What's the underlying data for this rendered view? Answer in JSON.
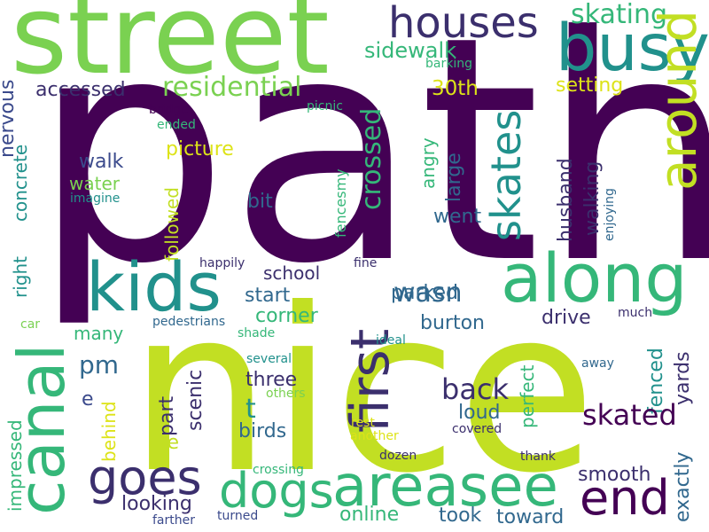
{
  "palette": {
    "dark_purple": "#440154",
    "indigo": "#3b4a8c",
    "blue": "#31688e",
    "teal": "#21918c",
    "green": "#35b779",
    "light_green": "#7ad151",
    "yellow_green": "#c2df23",
    "yellow": "#dde318"
  },
  "words": [
    {
      "text": "path",
      "color": "#440154"
    },
    {
      "text": "nice",
      "color": "#c2df23"
    },
    {
      "text": "street",
      "color": "#7ad151"
    },
    {
      "text": "houses",
      "color": "#3b2f6d"
    },
    {
      "text": "busy",
      "color": "#21918c"
    },
    {
      "text": "skating",
      "color": "#35b779"
    },
    {
      "text": "sidewalk",
      "color": "#35b779"
    },
    {
      "text": "barking",
      "color": "#35b779"
    },
    {
      "text": "skates",
      "color": "#21918c"
    },
    {
      "text": "around",
      "color": "#c2df23"
    },
    {
      "text": "residential",
      "color": "#7ad151"
    },
    {
      "text": "accessed",
      "color": "#3b2f6d"
    },
    {
      "text": "30th",
      "color": "#dde318"
    },
    {
      "text": "setting",
      "color": "#dde318"
    },
    {
      "text": "bridge",
      "color": "#440154"
    },
    {
      "text": "picnic",
      "color": "#35b779"
    },
    {
      "text": "ended",
      "color": "#35b779"
    },
    {
      "text": "nervous",
      "color": "#3b4a8c"
    },
    {
      "text": "concrete",
      "color": "#21918c"
    },
    {
      "text": "right",
      "color": "#21918c"
    },
    {
      "text": "walk",
      "color": "#3b4a8c"
    },
    {
      "text": "water",
      "color": "#7ad151"
    },
    {
      "text": "imagine",
      "color": "#21918c"
    },
    {
      "text": "picture",
      "color": "#dde318"
    },
    {
      "text": "bit",
      "color": "#31688e"
    },
    {
      "text": "followed",
      "color": "#c2df23"
    },
    {
      "text": "fencesmy",
      "color": "#35b779"
    },
    {
      "text": "crossed",
      "color": "#35b779"
    },
    {
      "text": "angry",
      "color": "#35b779"
    },
    {
      "text": "large",
      "color": "#31688e"
    },
    {
      "text": "went",
      "color": "#31688e"
    },
    {
      "text": "husband",
      "color": "#3b2f6d"
    },
    {
      "text": "walking",
      "color": "#3b2f6d"
    },
    {
      "text": "enjoying",
      "color": "#31688e"
    },
    {
      "text": "kids",
      "color": "#21918c"
    },
    {
      "text": "along",
      "color": "#35b779"
    },
    {
      "text": "canal",
      "color": "#35b779"
    },
    {
      "text": "first",
      "color": "#3b2f6d"
    },
    {
      "text": "happily",
      "color": "#3b2f6d"
    },
    {
      "text": "fine",
      "color": "#3b2f6d"
    },
    {
      "text": "school",
      "color": "#3b2f6d"
    },
    {
      "text": "wasn",
      "color": "#31688e"
    },
    {
      "text": "start",
      "color": "#31688e"
    },
    {
      "text": "parked",
      "color": "#31688e"
    },
    {
      "text": "corner",
      "color": "#35b779"
    },
    {
      "text": "pedestrians",
      "color": "#31688e"
    },
    {
      "text": "car",
      "color": "#7ad151"
    },
    {
      "text": "shade",
      "color": "#35b779"
    },
    {
      "text": "many",
      "color": "#35b779"
    },
    {
      "text": "burton",
      "color": "#31688e"
    },
    {
      "text": "drive",
      "color": "#3b2f6d"
    },
    {
      "text": "much",
      "color": "#3b2f6d"
    },
    {
      "text": "pm",
      "color": "#31688e"
    },
    {
      "text": "ideal",
      "color": "#21918c"
    },
    {
      "text": "several",
      "color": "#21918c"
    },
    {
      "text": "others",
      "color": "#7ad151"
    },
    {
      "text": "three",
      "color": "#3b2f6d"
    },
    {
      "text": "scenic",
      "color": "#3b2f6d"
    },
    {
      "text": "part",
      "color": "#3b2f6d"
    },
    {
      "text": "impressed",
      "color": "#35b779"
    },
    {
      "text": "e",
      "color": "#3b4a8c"
    },
    {
      "text": "behind",
      "color": "#dde318"
    },
    {
      "text": "re",
      "color": "#c2df23"
    },
    {
      "text": "t",
      "color": "#21918c"
    },
    {
      "text": "birds",
      "color": "#31688e"
    },
    {
      "text": "back",
      "color": "#3b2f6d"
    },
    {
      "text": "loud",
      "color": "#31688e"
    },
    {
      "text": "perfect",
      "color": "#35b779"
    },
    {
      "text": "away",
      "color": "#31688e"
    },
    {
      "text": "fenced",
      "color": "#21918c"
    },
    {
      "text": "yards",
      "color": "#3b2f6d"
    },
    {
      "text": "skated",
      "color": "#440154"
    },
    {
      "text": "another",
      "color": "#dde318"
    },
    {
      "text": "covered",
      "color": "#3b2f6d"
    },
    {
      "text": "rest",
      "color": "#dde318"
    },
    {
      "text": "exactly",
      "color": "#31688e"
    },
    {
      "text": "goes",
      "color": "#3b2f6d"
    },
    {
      "text": "dogs",
      "color": "#35b779"
    },
    {
      "text": "areasee",
      "color": "#35b779"
    },
    {
      "text": "end",
      "color": "#440154"
    },
    {
      "text": "smooth",
      "color": "#3b2f6d"
    },
    {
      "text": "looking",
      "color": "#3b2f6d"
    },
    {
      "text": "dozen",
      "color": "#3b2f6d"
    },
    {
      "text": "thank",
      "color": "#3b2f6d"
    },
    {
      "text": "crossing",
      "color": "#35b779"
    },
    {
      "text": "online",
      "color": "#35b779"
    },
    {
      "text": "took",
      "color": "#31688e"
    },
    {
      "text": "toward",
      "color": "#31688e"
    },
    {
      "text": "turned",
      "color": "#3b4a8c"
    },
    {
      "text": "farther",
      "color": "#3b4a8c"
    }
  ]
}
